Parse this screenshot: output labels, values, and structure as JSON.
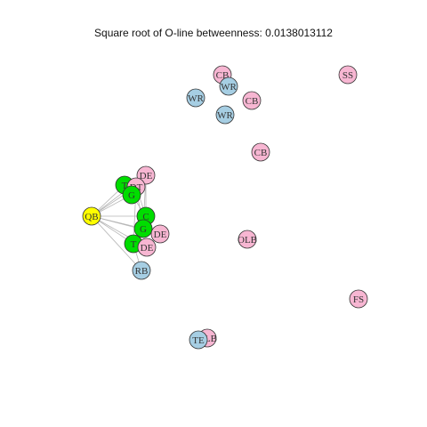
{
  "title": "Square root of O-line betweenness: 0.0138013112",
  "colors": {
    "pink": "#f7b6d2",
    "blue": "#a6cee3",
    "green": "#00dd00",
    "yellow": "#ffff00",
    "outline": "#333333",
    "edge": "#b5b5b5"
  },
  "nodes": [
    {
      "id": "cb1",
      "label": "CB",
      "color": "pink"
    },
    {
      "id": "wr1",
      "label": "WR",
      "color": "blue"
    },
    {
      "id": "ss1",
      "label": "SS",
      "color": "pink"
    },
    {
      "id": "wr2",
      "label": "WR",
      "color": "blue"
    },
    {
      "id": "cb2",
      "label": "CB",
      "color": "pink"
    },
    {
      "id": "wr3",
      "label": "WR",
      "color": "blue"
    },
    {
      "id": "cb3",
      "label": "CB",
      "color": "pink"
    },
    {
      "id": "de1",
      "label": "DE",
      "color": "pink"
    },
    {
      "id": "t1",
      "label": "T",
      "color": "green"
    },
    {
      "id": "dt1",
      "label": "DT",
      "color": "pink"
    },
    {
      "id": "g1",
      "label": "G",
      "color": "green"
    },
    {
      "id": "qb1",
      "label": "QB",
      "color": "yellow"
    },
    {
      "id": "c1",
      "label": "C",
      "color": "green"
    },
    {
      "id": "g2",
      "label": "G",
      "color": "green"
    },
    {
      "id": "de2",
      "label": "DE",
      "color": "pink"
    },
    {
      "id": "t2",
      "label": "T",
      "color": "green"
    },
    {
      "id": "de3",
      "label": "DE",
      "color": "pink"
    },
    {
      "id": "rb1",
      "label": "RB",
      "color": "blue"
    },
    {
      "id": "olb1",
      "label": "OLB",
      "color": "pink"
    },
    {
      "id": "fs1",
      "label": "FS",
      "color": "pink"
    },
    {
      "id": "olb2",
      "label": "OLB",
      "color": "pink"
    },
    {
      "id": "te1",
      "label": "TE",
      "color": "blue"
    }
  ],
  "edges": [
    [
      "qb1",
      "t1"
    ],
    [
      "qb1",
      "g1"
    ],
    [
      "qb1",
      "c1"
    ],
    [
      "qb1",
      "g2"
    ],
    [
      "qb1",
      "t2"
    ],
    [
      "qb1",
      "rb1"
    ],
    [
      "qb1",
      "dt1"
    ],
    [
      "qb1",
      "de1"
    ],
    [
      "qb1",
      "de2"
    ],
    [
      "qb1",
      "de3"
    ],
    [
      "t1",
      "g1"
    ],
    [
      "g1",
      "c1"
    ],
    [
      "c1",
      "g2"
    ],
    [
      "g2",
      "t2"
    ],
    [
      "t1",
      "de1"
    ],
    [
      "g1",
      "dt1"
    ],
    [
      "c1",
      "dt1"
    ],
    [
      "g2",
      "de2"
    ],
    [
      "t2",
      "de3"
    ],
    [
      "t1",
      "dt1"
    ],
    [
      "de1",
      "c1"
    ],
    [
      "de1",
      "g2"
    ],
    [
      "dt1",
      "g2"
    ],
    [
      "dt1",
      "t2"
    ],
    [
      "t2",
      "rb1"
    ],
    [
      "g1",
      "de1"
    ]
  ]
}
